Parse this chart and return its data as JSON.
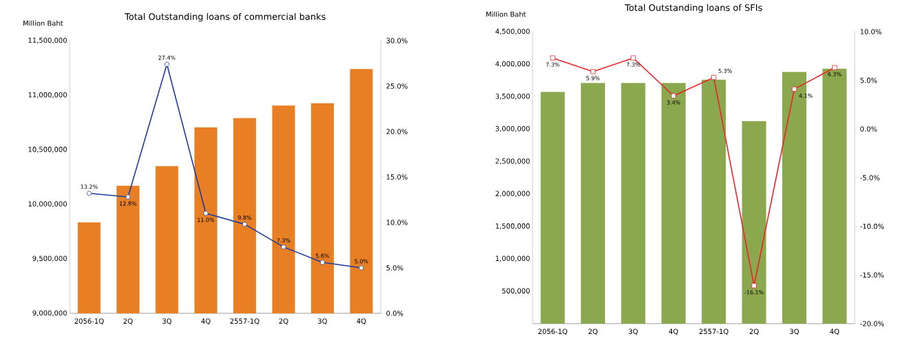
{
  "chart_data": [
    {
      "type": "bar",
      "title": "Total Outstanding loans of commercial banks",
      "ylabel": "Million Baht",
      "categories": [
        "2056-1Q",
        "2Q",
        "3Q",
        "4Q",
        "2557-1Q",
        "2Q",
        "3Q",
        "4Q"
      ],
      "series": [
        {
          "color": "#e87f24",
          "values": [
            9833000,
            10170000,
            10350000,
            10705000,
            10790000,
            10905000,
            10925000,
            11240000
          ]
        },
        {
          "type": "line",
          "axis": "y2",
          "color": "#1f3a9c",
          "marker": "circle",
          "values": [
            13.2,
            12.8,
            27.4,
            11.0,
            9.8,
            7.3,
            5.6,
            5.0
          ],
          "value_labels": [
            "13.2%",
            "12.8%",
            "27.4%",
            "11.0%",
            "9.8%",
            "7.3%",
            "5.6%",
            "5.0%"
          ]
        }
      ],
      "ylim": [
        9000000,
        11500000
      ],
      "yticks": [
        {
          "value": 9000000,
          "label": "9,000,000"
        },
        {
          "value": 9500000,
          "label": "9,500,000"
        },
        {
          "value": 10000000,
          "label": "10,000,000"
        },
        {
          "value": 10500000,
          "label": "10,500,000"
        },
        {
          "value": 11000000,
          "label": "11,000,000"
        },
        {
          "value": 11500000,
          "label": "11,500,000"
        }
      ],
      "y2lim": [
        0,
        30
      ],
      "y2ticks": [
        {
          "value": 0,
          "label": "0.0%"
        },
        {
          "value": 5,
          "label": "5.0%"
        },
        {
          "value": 10,
          "label": "10.0%"
        },
        {
          "value": 15,
          "label": "15.0%"
        },
        {
          "value": 20,
          "label": "20.0%"
        },
        {
          "value": 25,
          "label": "25.0%"
        },
        {
          "value": 30,
          "label": "30.0%"
        }
      ]
    },
    {
      "type": "bar",
      "title": "Total Outstanding loans of SFIs",
      "ylabel": "Million Baht",
      "categories": [
        "2056-1Q",
        "2Q",
        "3Q",
        "4Q",
        "2557-1Q",
        "2Q",
        "3Q",
        "4Q"
      ],
      "series": [
        {
          "color": "#8ba84e",
          "values": [
            3570000,
            3710000,
            3710000,
            3710000,
            3760000,
            3120000,
            3880000,
            3930000
          ]
        },
        {
          "type": "line",
          "axis": "y2",
          "color": "#e8252a",
          "marker": "square",
          "values": [
            7.3,
            5.9,
            7.3,
            3.4,
            5.3,
            -16.1,
            4.1,
            6.3
          ],
          "value_labels": [
            "7.3%",
            "5.9%",
            "7.3%",
            "3.4%",
            "5.3%",
            "-16.1%",
            "4.1%",
            "6.3%"
          ]
        }
      ],
      "ylim": [
        0,
        4500000
      ],
      "yticks": [
        {
          "value": 0,
          "label": null
        },
        {
          "value": 500000,
          "label": "500,000"
        },
        {
          "value": 1000000,
          "label": "1,000,000"
        },
        {
          "value": 1500000,
          "label": "1,500,000"
        },
        {
          "value": 2000000,
          "label": "2,000,000"
        },
        {
          "value": 2500000,
          "label": "2,500,000"
        },
        {
          "value": 3000000,
          "label": "3,000,000"
        },
        {
          "value": 3500000,
          "label": "3,500,000"
        },
        {
          "value": 4000000,
          "label": "4,000,000"
        },
        {
          "value": 4500000,
          "label": "4,500,000"
        }
      ],
      "y2lim": [
        -20,
        10
      ],
      "y2ticks": [
        {
          "value": -20,
          "label": "-20.0%"
        },
        {
          "value": -15,
          "label": "-15.0%"
        },
        {
          "value": -10,
          "label": "-10.0%"
        },
        {
          "value": -5,
          "label": "-5.0%"
        },
        {
          "value": 0,
          "label": "0.0%"
        },
        {
          "value": 5,
          "label": "5.0%"
        },
        {
          "value": 10,
          "label": "10.0%"
        }
      ]
    }
  ]
}
